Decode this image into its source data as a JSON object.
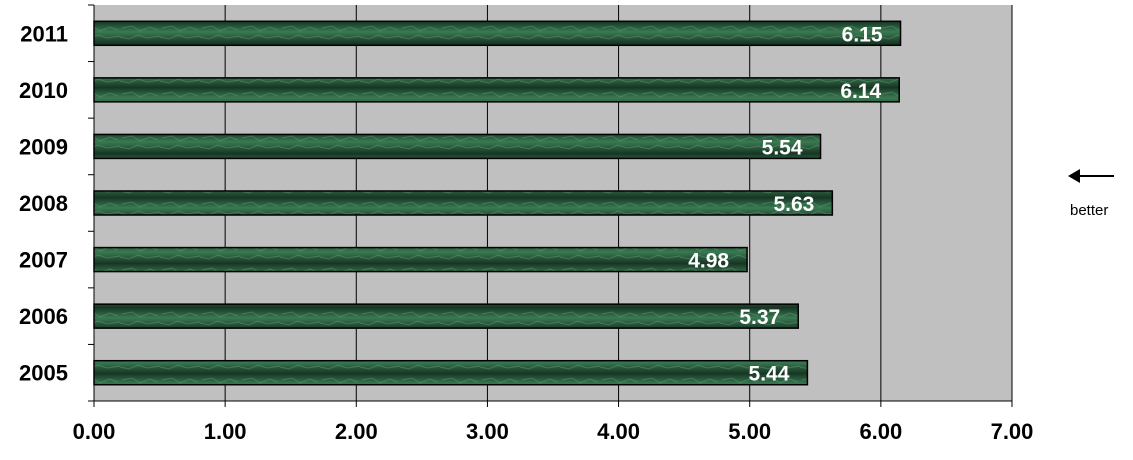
{
  "chart_data": {
    "type": "bar",
    "orientation": "horizontal",
    "categories": [
      "2011",
      "2010",
      "2009",
      "2008",
      "2007",
      "2006",
      "2005"
    ],
    "values": [
      6.15,
      6.14,
      5.54,
      5.63,
      4.98,
      5.37,
      5.44
    ],
    "value_labels": [
      "6.15",
      "6.14",
      "5.54",
      "5.63",
      "4.98",
      "5.37",
      "5.44"
    ],
    "xlim": [
      0,
      7
    ],
    "x_ticks": [
      "0.00",
      "1.00",
      "2.00",
      "3.00",
      "4.00",
      "5.00",
      "6.00",
      "7.00"
    ],
    "grid": true,
    "colors": {
      "plot_bg": "#c0c0c0",
      "bar": "#2f6a45",
      "bar_dark": "#183a26",
      "label": "#ffffff"
    }
  },
  "annotation": {
    "arrow": "left-arrow-icon",
    "text": "better"
  }
}
